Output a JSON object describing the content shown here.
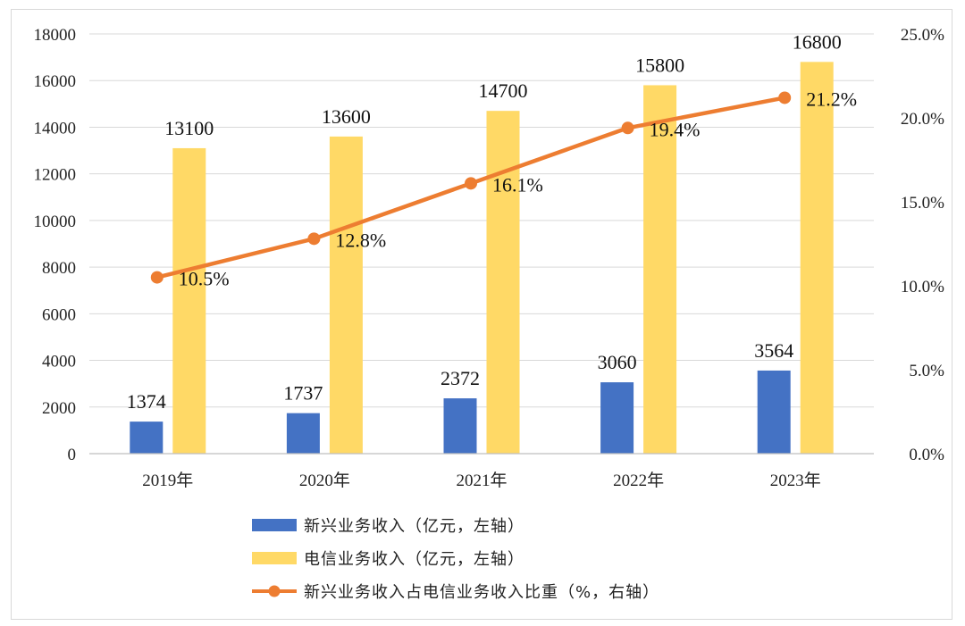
{
  "chart_data": {
    "type": "bar+line",
    "categories": [
      "2019年",
      "2020年",
      "2021年",
      "2022年",
      "2023年"
    ],
    "series": [
      {
        "name": "新兴业务收入（亿元，左轴）",
        "type": "bar",
        "axis": "left",
        "color": "#4472c4",
        "values": [
          1374,
          1737,
          2372,
          3060,
          3564
        ],
        "labels": [
          "1374",
          "1737",
          "2372",
          "3060",
          "3564"
        ]
      },
      {
        "name": "电信业务收入（亿元，左轴）",
        "type": "bar",
        "axis": "left",
        "color": "#ffd966",
        "values": [
          13100,
          13600,
          14700,
          15800,
          16800
        ],
        "labels": [
          "13100",
          "13600",
          "14700",
          "15800",
          "16800"
        ]
      },
      {
        "name": "新兴业务收入占电信业务收入比重（%，右轴）",
        "type": "line",
        "axis": "right",
        "color": "#ed7d31",
        "values": [
          10.5,
          12.8,
          16.1,
          19.4,
          21.2
        ],
        "labels": [
          "10.5%",
          "12.8%",
          "16.1%",
          "19.4%",
          "21.2%"
        ]
      }
    ],
    "left_axis": {
      "ylim": [
        0,
        18000
      ],
      "ticks": [
        0,
        2000,
        4000,
        6000,
        8000,
        10000,
        12000,
        14000,
        16000,
        18000
      ],
      "tick_labels": [
        "0",
        "2000",
        "4000",
        "6000",
        "8000",
        "10000",
        "12000",
        "14000",
        "16000",
        "18000"
      ]
    },
    "right_axis": {
      "ylim": [
        0,
        25
      ],
      "ticks": [
        0,
        5,
        10,
        15,
        20,
        25
      ],
      "tick_labels": [
        "0.0%",
        "5.0%",
        "10.0%",
        "15.0%",
        "20.0%",
        "25.0%"
      ]
    },
    "title": "",
    "legend": {
      "position": "bottom-center",
      "labels": [
        "新兴业务收入（亿元，左轴）",
        "电信业务收入（亿元，左轴）",
        "新兴业务收入占电信业务收入比重（%，右轴）"
      ]
    },
    "grid": true
  }
}
